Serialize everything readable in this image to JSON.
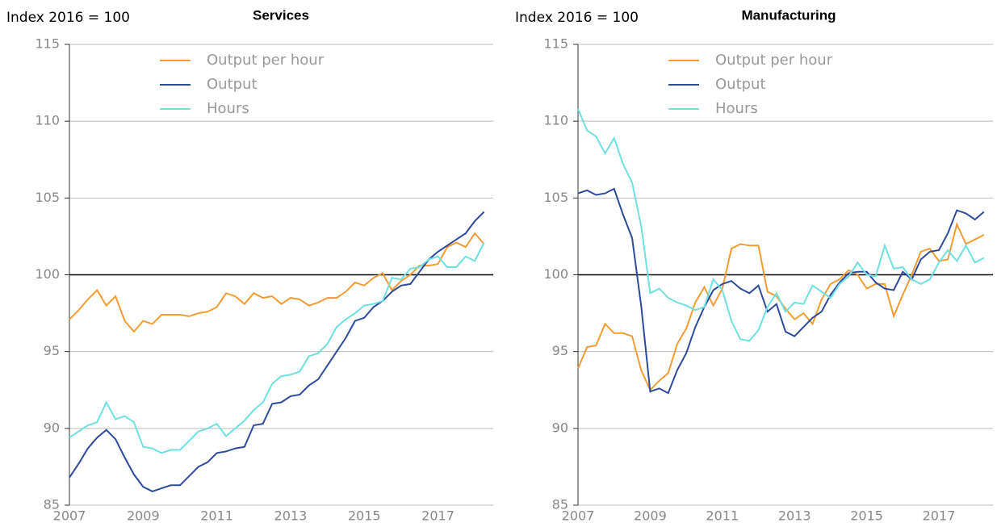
{
  "chart_data": [
    {
      "type": "line",
      "title": "Services",
      "y_label": "Index 2016 = 100",
      "x": [
        2007,
        2007.25,
        2007.5,
        2007.75,
        2008,
        2008.25,
        2008.5,
        2008.75,
        2009,
        2009.25,
        2009.5,
        2009.75,
        2010,
        2010.25,
        2010.5,
        2010.75,
        2011,
        2011.25,
        2011.5,
        2011.75,
        2012,
        2012.25,
        2012.5,
        2012.75,
        2013,
        2013.25,
        2013.5,
        2013.75,
        2014,
        2014.25,
        2014.5,
        2014.75,
        2015,
        2015.25,
        2015.5,
        2015.75,
        2016,
        2016.25,
        2016.5,
        2016.75,
        2017,
        2017.25,
        2017.5,
        2017.75,
        2018,
        2018.25
      ],
      "series": [
        {
          "name": "Output per hour",
          "color": "#f39c34",
          "values": [
            97.1,
            97.7,
            98.4,
            99.0,
            98.0,
            98.6,
            97.0,
            96.3,
            97.0,
            96.8,
            97.4,
            97.4,
            97.4,
            97.3,
            97.5,
            97.6,
            97.9,
            98.8,
            98.6,
            98.1,
            98.8,
            98.5,
            98.6,
            98.1,
            98.5,
            98.4,
            98.0,
            98.2,
            98.5,
            98.5,
            98.9,
            99.5,
            99.3,
            99.8,
            100.1,
            99.0,
            99.6,
            100.0,
            100.6,
            100.6,
            100.7,
            101.8,
            102.1,
            101.8,
            102.7,
            102.0
          ]
        },
        {
          "name": "Output",
          "color": "#2e4a9a",
          "values": [
            86.8,
            87.7,
            88.7,
            89.4,
            89.9,
            89.3,
            88.1,
            87.0,
            86.2,
            85.9,
            86.1,
            86.3,
            86.3,
            86.9,
            87.5,
            87.8,
            88.4,
            88.5,
            88.7,
            88.8,
            90.2,
            90.3,
            91.6,
            91.7,
            92.1,
            92.2,
            92.8,
            93.2,
            94.1,
            95.0,
            95.9,
            97.0,
            97.2,
            97.9,
            98.3,
            98.9,
            99.3,
            99.4,
            100.2,
            101.0,
            101.5,
            101.9,
            102.3,
            102.7,
            103.5,
            104.1
          ]
        },
        {
          "name": "Hours",
          "color": "#6fe0e0",
          "values": [
            89.4,
            89.8,
            90.2,
            90.4,
            91.7,
            90.6,
            90.8,
            90.4,
            88.8,
            88.7,
            88.4,
            88.6,
            88.6,
            89.2,
            89.8,
            90.0,
            90.3,
            89.5,
            90.0,
            90.5,
            91.2,
            91.7,
            92.9,
            93.4,
            93.5,
            93.7,
            94.7,
            94.9,
            95.5,
            96.6,
            97.1,
            97.5,
            98.0,
            98.1,
            98.3,
            99.8,
            99.7,
            100.4,
            100.5,
            101.0,
            101.2,
            100.5,
            100.5,
            101.2,
            100.9,
            102.1
          ]
        }
      ],
      "xlim": [
        2007,
        2018.5
      ],
      "xticks": [
        2007,
        2009,
        2011,
        2013,
        2015,
        2017
      ],
      "ylim": [
        85,
        115
      ],
      "yticks": [
        85,
        90,
        95,
        100,
        105,
        110,
        115
      ],
      "grid": true,
      "reference_line": 100,
      "legend": "top"
    },
    {
      "type": "line",
      "title": "Manufacturing",
      "y_label": "Index 2016 = 100",
      "x": [
        2007,
        2007.25,
        2007.5,
        2007.75,
        2008,
        2008.25,
        2008.5,
        2008.75,
        2009,
        2009.25,
        2009.5,
        2009.75,
        2010,
        2010.25,
        2010.5,
        2010.75,
        2011,
        2011.25,
        2011.5,
        2011.75,
        2012,
        2012.25,
        2012.5,
        2012.75,
        2013,
        2013.25,
        2013.5,
        2013.75,
        2014,
        2014.25,
        2014.5,
        2014.75,
        2015,
        2015.25,
        2015.5,
        2015.75,
        2016,
        2016.25,
        2016.5,
        2016.75,
        2017,
        2017.25,
        2017.5,
        2017.75,
        2018,
        2018.25
      ],
      "series": [
        {
          "name": "Output per hour",
          "color": "#f39c34",
          "values": [
            93.9,
            95.3,
            95.4,
            96.8,
            96.2,
            96.2,
            96.0,
            93.8,
            92.5,
            93.1,
            93.6,
            95.5,
            96.5,
            98.2,
            99.2,
            98.0,
            99.1,
            101.7,
            102.0,
            101.9,
            101.9,
            98.9,
            98.6,
            97.8,
            97.1,
            97.5,
            96.8,
            98.4,
            99.4,
            99.7,
            100.3,
            100.0,
            99.1,
            99.4,
            99.4,
            97.3,
            98.7,
            100.0,
            101.5,
            101.7,
            100.9,
            101.0,
            103.3,
            102.0,
            102.3,
            102.6
          ]
        },
        {
          "name": "Output",
          "color": "#2e4a9a",
          "values": [
            105.3,
            105.5,
            105.2,
            105.3,
            105.6,
            103.9,
            102.4,
            98.0,
            92.4,
            92.6,
            92.3,
            93.8,
            94.9,
            96.6,
            97.9,
            99.0,
            99.4,
            99.6,
            99.1,
            98.8,
            99.3,
            97.6,
            98.1,
            96.3,
            96.0,
            96.6,
            97.2,
            97.6,
            98.7,
            99.5,
            100.1,
            100.2,
            100.2,
            99.5,
            99.1,
            99.0,
            100.2,
            99.7,
            101.0,
            101.5,
            101.6,
            102.7,
            104.2,
            104.0,
            103.6,
            104.1
          ]
        },
        {
          "name": "Hours",
          "color": "#6fe0e0",
          "values": [
            110.8,
            109.4,
            109.0,
            107.9,
            108.9,
            107.2,
            106.0,
            103.2,
            98.8,
            99.1,
            98.5,
            98.2,
            98.0,
            97.7,
            97.9,
            99.7,
            99.0,
            97.0,
            95.8,
            95.7,
            96.4,
            97.9,
            98.8,
            97.6,
            98.2,
            98.1,
            99.3,
            98.9,
            98.5,
            99.4,
            99.9,
            100.8,
            100.0,
            99.9,
            101.9,
            100.4,
            100.5,
            99.7,
            99.4,
            99.7,
            100.8,
            101.6,
            100.9,
            101.9,
            100.8,
            101.1
          ]
        }
      ],
      "xlim": [
        2007,
        2018.5
      ],
      "xticks": [
        2007,
        2009,
        2011,
        2013,
        2015,
        2017
      ],
      "ylim": [
        85,
        115
      ],
      "yticks": [
        85,
        90,
        95,
        100,
        105,
        110,
        115
      ],
      "grid": true,
      "reference_line": 100,
      "legend": "top"
    }
  ]
}
